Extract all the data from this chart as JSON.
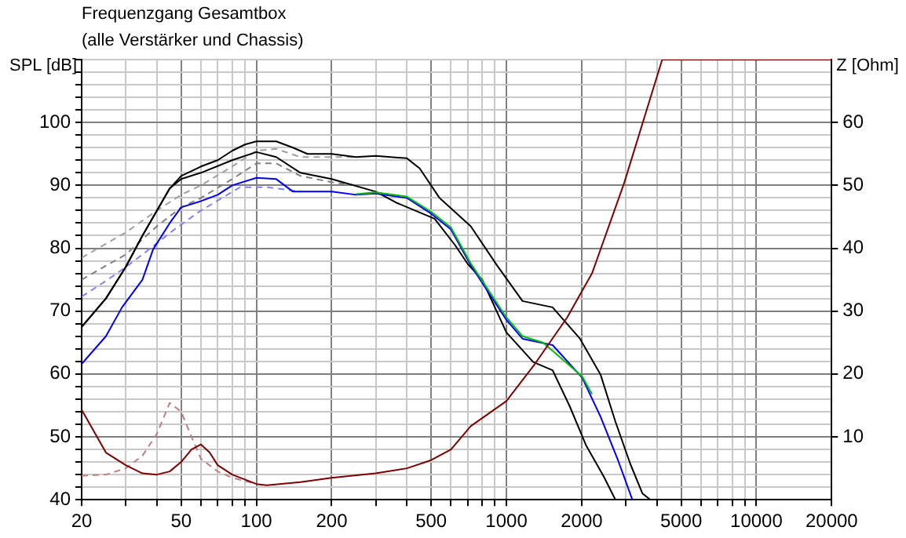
{
  "chart_data": {
    "type": "line",
    "title": "Frequenzgang Gesamtbox",
    "subtitle": "(alle Verstärker und Chassis)",
    "ylabel": "SPL [dB]",
    "y2label": "Z [Ohm]",
    "log": "x",
    "grid": true,
    "legend": false,
    "marker": "none",
    "xlim": [
      20,
      20000
    ],
    "xticks": [
      20,
      {
        "value": 30,
        "label": null
      },
      {
        "value": 40,
        "label": null
      },
      50,
      {
        "value": 60,
        "label": null
      },
      {
        "value": 70,
        "label": null
      },
      {
        "value": 80,
        "label": null
      },
      {
        "value": 90,
        "label": null
      },
      100,
      200,
      {
        "value": 300,
        "label": null
      },
      {
        "value": 400,
        "label": null
      },
      500,
      {
        "value": 600,
        "label": null
      },
      {
        "value": 700,
        "label": null
      },
      {
        "value": 800,
        "label": null
      },
      {
        "value": 900,
        "label": null
      },
      1000,
      2000,
      {
        "value": 3000,
        "label": null
      },
      {
        "value": 4000,
        "label": null
      },
      5000,
      {
        "value": 6000,
        "label": null
      },
      {
        "value": 7000,
        "label": null
      },
      {
        "value": 8000,
        "label": null
      },
      {
        "value": 9000,
        "label": null
      },
      10000,
      20000
    ],
    "ylim": [
      40,
      110
    ],
    "yticks": [
      40,
      {
        "value": 42,
        "label": null
      },
      {
        "value": 44,
        "label": null
      },
      {
        "value": 46,
        "label": null
      },
      {
        "value": 48,
        "label": null
      },
      50,
      {
        "value": 52,
        "label": null
      },
      {
        "value": 54,
        "label": null
      },
      {
        "value": 56,
        "label": null
      },
      {
        "value": 58,
        "label": null
      },
      60,
      {
        "value": 62,
        "label": null
      },
      {
        "value": 64,
        "label": null
      },
      {
        "value": 66,
        "label": null
      },
      {
        "value": 68,
        "label": null
      },
      70,
      {
        "value": 72,
        "label": null
      },
      {
        "value": 74,
        "label": null
      },
      {
        "value": 76,
        "label": null
      },
      {
        "value": 78,
        "label": null
      },
      80,
      {
        "value": 82,
        "label": null
      },
      {
        "value": 84,
        "label": null
      },
      {
        "value": 86,
        "label": null
      },
      {
        "value": 88,
        "label": null
      },
      90,
      {
        "value": 92,
        "label": null
      },
      {
        "value": 94,
        "label": null
      },
      {
        "value": 96,
        "label": null
      },
      {
        "value": 98,
        "label": null
      },
      100,
      {
        "value": 102,
        "label": null
      },
      {
        "value": 104,
        "label": null
      },
      {
        "value": 106,
        "label": null
      },
      {
        "value": 108,
        "label": null
      },
      {
        "value": 110,
        "label": null
      }
    ],
    "y2lim": [
      0,
      70
    ],
    "y2ticks": [
      10,
      20,
      30,
      40,
      50,
      60
    ],
    "series": [
      {
        "color": "#a0a0a0",
        "line_style": "dashed",
        "x": [
          20,
          30,
          40,
          50,
          60,
          80,
          100,
          120,
          150,
          200,
          250
        ],
        "values": [
          78.5,
          82.5,
          86,
          88.5,
          90,
          93,
          95.5,
          95.8,
          94.5,
          94.5,
          94.5
        ]
      },
      {
        "color": "#808080",
        "line_style": "dashed",
        "x": [
          20,
          30,
          40,
          50,
          60,
          80,
          100,
          120,
          150,
          200,
          250
        ],
        "values": [
          75,
          79,
          83.5,
          86.5,
          88,
          91,
          93.5,
          93.5,
          91.5,
          90.5,
          90
        ]
      },
      {
        "color": "#8080ff",
        "line_style": "dashed",
        "x": [
          20,
          25,
          30,
          35,
          47,
          60,
          86,
          111,
          150
        ],
        "values": [
          72.3,
          74.8,
          77,
          79,
          83,
          86,
          89.7,
          89.7,
          89
        ]
      },
      {
        "color": "#c08080",
        "line_style": "dashed",
        "axis": "y2",
        "x": [
          20,
          25,
          30,
          35,
          40,
          45,
          50,
          55,
          60,
          70,
          80,
          100
        ],
        "values": [
          3.8,
          4,
          5,
          7,
          10.5,
          15.4,
          14,
          10,
          6.5,
          4.5,
          3.5,
          2.5
        ]
      },
      {
        "color": "#000000",
        "line_style": "solid",
        "x": [
          20,
          25,
          30,
          35,
          40,
          45,
          50,
          60,
          70,
          80,
          90,
          100,
          120,
          140,
          160,
          200,
          250,
          300,
          400,
          450,
          540,
          720,
          916,
          1160,
          1530,
          1970,
          2380,
          2730,
          3130,
          3500,
          3770
        ],
        "values": [
          67.5,
          72,
          77,
          82,
          86,
          89.5,
          91.5,
          93,
          94,
          95.5,
          96.5,
          97,
          97,
          96,
          95,
          95,
          94.5,
          94.7,
          94.3,
          92.7,
          88,
          83.5,
          77.3,
          71.6,
          70.6,
          65.6,
          59.9,
          52.4,
          45.7,
          41,
          40
        ]
      },
      {
        "color": "#000000",
        "line_style": "solid",
        "x": [
          20,
          25,
          30,
          35,
          40,
          45,
          50,
          60,
          80,
          100,
          120,
          150,
          200,
          300,
          365,
          516,
          623,
          700,
          800,
          1000,
          1280,
          1530,
          1790,
          2080,
          2450,
          2730
        ],
        "values": [
          67.5,
          72,
          77,
          82,
          86,
          89.5,
          91,
          92,
          94,
          95.3,
          94.5,
          92,
          91,
          89,
          87.2,
          84.7,
          80.5,
          77.5,
          75,
          66.6,
          61.9,
          60.6,
          54.9,
          48.7,
          43.7,
          40
        ]
      },
      {
        "color": "#0000ff",
        "line_style": "solid",
        "x": [
          20,
          25,
          29,
          35,
          38.6,
          45,
          50,
          60,
          70,
          80,
          100,
          120,
          140,
          200,
          250,
          300,
          400,
          500,
          600,
          720,
          1000,
          1160,
          1530,
          2010,
          2380,
          2800,
          3190
        ],
        "values": [
          61.6,
          66,
          70.6,
          75,
          79.8,
          84,
          86.5,
          87.5,
          88.5,
          90,
          91.2,
          91,
          89,
          89,
          88.5,
          88.7,
          88,
          85.5,
          83,
          77.3,
          68.6,
          65.6,
          64.6,
          59.4,
          53.2,
          46.2,
          40
        ]
      },
      {
        "color": "#00c000",
        "line_style": "solid",
        "x": [
          250,
          300,
          400,
          500,
          600,
          720,
          1000,
          1160,
          1400,
          2010,
          2200
        ],
        "values": [
          88.6,
          88.9,
          88.2,
          85.8,
          83.3,
          77.6,
          69,
          66,
          65,
          59.6,
          56.8
        ]
      },
      {
        "color": "#800000",
        "line_style": "solid",
        "axis": "y2",
        "x": [
          20,
          25,
          30,
          35,
          40,
          45,
          50,
          55,
          60,
          65,
          70,
          80,
          100,
          110,
          150,
          200,
          300,
          400,
          500,
          600,
          720,
          1000,
          1300,
          1750,
          2200,
          2960,
          3860,
          4200,
          20000
        ],
        "values": [
          14.3,
          7.5,
          5.5,
          4.2,
          4,
          4.5,
          6,
          8,
          8.8,
          7.5,
          5.5,
          4,
          2.5,
          2.3,
          2.8,
          3.5,
          4.2,
          5,
          6.3,
          8,
          11.7,
          15.7,
          21.6,
          29,
          36,
          50.4,
          65.3,
          70,
          70
        ]
      }
    ]
  }
}
